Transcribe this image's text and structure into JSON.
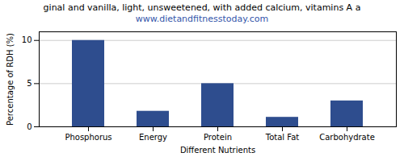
{
  "chart_data": {
    "type": "bar",
    "title": "ginal and vanilla, light, unsweetened, with added calcium, vitamins A a",
    "subtitle": "www.dietandfitnesstoday.com",
    "xlabel": "Different Nutrients",
    "ylabel": "Percentage of RDH (%)",
    "categories": [
      "Phosphorus",
      "Energy",
      "Protein",
      "Total Fat",
      "Carbohydrate"
    ],
    "values": [
      10.0,
      1.8,
      5.0,
      1.1,
      3.0
    ],
    "color": "#2e4d8e",
    "ylim": [
      0,
      11
    ],
    "yticks": [
      0,
      5,
      10
    ],
    "grid": true
  }
}
